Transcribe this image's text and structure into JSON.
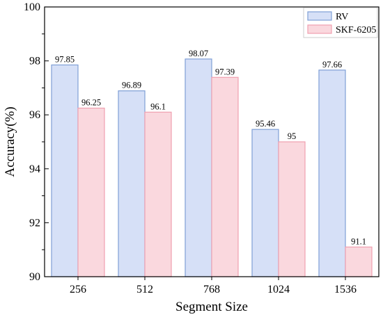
{
  "chart_data": {
    "type": "bar",
    "title": "",
    "xlabel": "Segment Size",
    "ylabel": "Accuracy(%)",
    "categories": [
      "256",
      "512",
      "768",
      "1024",
      "1536"
    ],
    "ylim": [
      90,
      100
    ],
    "yticks": [
      90,
      92,
      94,
      96,
      98,
      100
    ],
    "series": [
      {
        "name": "RV",
        "values": [
          97.85,
          96.89,
          98.07,
          95.46,
          97.66
        ],
        "labels": [
          "97.85",
          "96.89",
          "98.07",
          "95.46",
          "97.66"
        ],
        "fill": "#d6e0f7",
        "stroke": "#7f9fd6"
      },
      {
        "name": "SKF-6205",
        "values": [
          96.25,
          96.1,
          97.39,
          95,
          91.1
        ],
        "labels": [
          "96.25",
          "96.1",
          "97.39",
          "95",
          "91.1"
        ],
        "fill": "#fad8de",
        "stroke": "#f0a0b0"
      }
    ],
    "legend_position": "top-right",
    "grid": false
  }
}
